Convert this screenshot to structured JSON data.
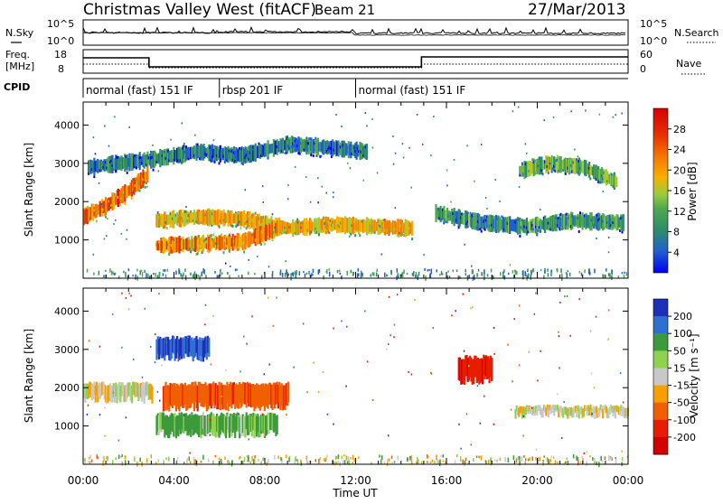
{
  "header": {
    "station": "Christmas Valley West (fitACF)",
    "beam": "Beam 21",
    "date": "27/Mar/2013"
  },
  "noise_panel": {
    "left_label": "N.Sky",
    "right_label": "N.Search",
    "left_ticks": [
      "10^5",
      "10^0"
    ],
    "right_ticks": [
      "10^5",
      "10^0"
    ]
  },
  "freq_panel": {
    "left_label_1": "Freq.",
    "left_label_2": "[MHz]",
    "right_label": "Nave",
    "left_ticks": [
      "18",
      "8"
    ],
    "right_ticks": [
      "60",
      "0"
    ]
  },
  "cpid": {
    "label": "CPID",
    "modes": [
      {
        "label": "normal (fast) 151 IF",
        "start_hour": 0,
        "end_hour": 6
      },
      {
        "label": "rbsp 201 IF",
        "start_hour": 6,
        "end_hour": 12
      },
      {
        "label": "normal (fast) 151 IF",
        "start_hour": 12,
        "end_hour": 24
      }
    ]
  },
  "chart_data": [
    {
      "type": "heatmap",
      "panel": "power",
      "ylabel": "Slant Range [km]",
      "xlabel": "Time UT",
      "xlim": [
        0,
        24
      ],
      "ylim": [
        0,
        4600
      ],
      "x_ticks": [
        "00:00",
        "04:00",
        "08:00",
        "12:00",
        "16:00",
        "20:00",
        "00:00"
      ],
      "y_ticks": [
        1000,
        2000,
        3000,
        4000
      ],
      "colorbar": {
        "label": "Power [dB]",
        "ticks": [
          "28",
          "24",
          "20",
          "16",
          "12",
          "8",
          "4"
        ],
        "min": 0,
        "max": 32,
        "colors": [
          "#0000ee",
          "#1f5fd0",
          "#2f8c6a",
          "#4fa84f",
          "#9ccc3c",
          "#f7b000",
          "#f57a00",
          "#e83000",
          "#d40000"
        ]
      },
      "features": [
        {
          "name": "upper band 3000 km",
          "hours": [
            0.2,
            3.0,
            5.0,
            7.0,
            9.0,
            11.0,
            12.5
          ],
          "range_km": [
            2900,
            3100,
            3300,
            3200,
            3500,
            3400,
            3300
          ],
          "power_db": 8
        },
        {
          "name": "rising echo 00-02 UT",
          "hours": [
            0.0,
            1.0,
            2.0,
            2.8
          ],
          "range_km": [
            1600,
            1900,
            2300,
            2700
          ],
          "power_db": 24
        },
        {
          "name": "lower band 1500 km",
          "hours": [
            3.2,
            5.0,
            7.0,
            9.0,
            11.0,
            12.8,
            14.5
          ],
          "range_km": [
            1500,
            1600,
            1550,
            1300,
            1400,
            1350,
            1300
          ],
          "power_db": 20
        },
        {
          "name": "low band 800 km",
          "hours": [
            3.2,
            5.0,
            7.0,
            8.5
          ],
          "range_km": [
            850,
            900,
            950,
            1300
          ],
          "power_db": 22
        },
        {
          "name": "evening band",
          "hours": [
            15.5,
            17.5,
            19.5,
            21.5,
            23.8
          ],
          "range_km": [
            1700,
            1450,
            1350,
            1500,
            1450
          ],
          "power_db": 10
        },
        {
          "name": "evening patch 3000 km",
          "hours": [
            19.2,
            20.5,
            22.0,
            23.5
          ],
          "range_km": [
            2800,
            3000,
            2900,
            2500
          ],
          "power_db": 14
        }
      ]
    },
    {
      "type": "heatmap",
      "panel": "velocity",
      "ylabel": "Slant Range [km]",
      "xlabel": "Time UT",
      "xlim": [
        0,
        24
      ],
      "ylim": [
        0,
        4600
      ],
      "x_ticks": [
        "00:00",
        "04:00",
        "08:00",
        "12:00",
        "16:00",
        "20:00",
        "00:00"
      ],
      "y_ticks": [
        1000,
        2000,
        3000,
        4000
      ],
      "colorbar": {
        "label": "Velocity [m s⁻¹]",
        "ticks": [
          "200",
          "100",
          "50",
          "15",
          "-15",
          "-50",
          "-100",
          "-200"
        ],
        "colors": [
          "#1f2fb8",
          "#2f6fd0",
          "#3c9a3c",
          "#8fd24f",
          "#c8c8c8",
          "#f5a000",
          "#f06000",
          "#e81c00",
          "#d40000"
        ]
      },
      "features": [
        {
          "name": "ground scatter 2000 km",
          "hours": [
            0.0,
            3.0
          ],
          "range_km": [
            1700,
            2100
          ],
          "velocity": 0
        },
        {
          "name": "positive flow 3000 km",
          "hours": [
            3.2,
            5.5
          ],
          "range_km": [
            2800,
            3300
          ],
          "velocity": 150
        },
        {
          "name": "negative flow 1500 km",
          "hours": [
            3.5,
            9.0
          ],
          "range_km": [
            1500,
            2100
          ],
          "velocity": -80
        },
        {
          "name": "green band 1000 km",
          "hours": [
            3.2,
            8.5
          ],
          "range_km": [
            800,
            1300
          ],
          "velocity": 40
        },
        {
          "name": "negative patch 16-18 UT",
          "hours": [
            16.5,
            18.0
          ],
          "range_km": [
            2200,
            2800
          ],
          "velocity": -180
        },
        {
          "name": "ground scatter evening",
          "hours": [
            19.0,
            24.0
          ],
          "range_km": [
            1300,
            1500
          ],
          "velocity": 0
        }
      ]
    }
  ]
}
